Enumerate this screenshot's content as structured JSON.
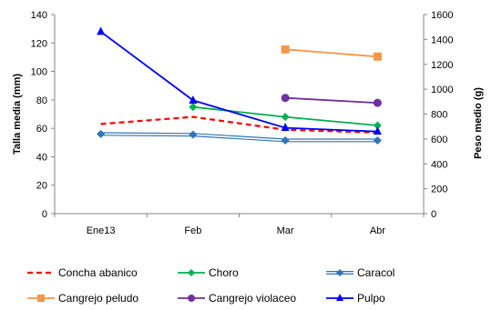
{
  "chart_data": {
    "type": "line",
    "categories": [
      "Ene13",
      "Feb",
      "Mar",
      "Abr"
    ],
    "ylabel": "Talla media (mm)",
    "y2label": "Peso medio (g)",
    "ylim": [
      0,
      140
    ],
    "y2lim": [
      0,
      1600
    ],
    "yticks": [
      "0",
      "20",
      "40",
      "60",
      "80",
      "100",
      "120",
      "140"
    ],
    "y2ticks": [
      "0",
      "200",
      "400",
      "600",
      "800",
      "1000",
      "1200",
      "1400",
      "1600"
    ],
    "legend_position": "bottom",
    "series": [
      {
        "name": "Concha abanico",
        "axis": "left",
        "color": "#ff0000",
        "dash": true,
        "marker": "none",
        "values": [
          63,
          68,
          59,
          57
        ]
      },
      {
        "name": "Choro",
        "axis": "left",
        "color": "#00b050",
        "dash": false,
        "marker": "diamond",
        "values": [
          null,
          75,
          68,
          62
        ]
      },
      {
        "name": "Caracol",
        "axis": "left",
        "color": "#2e75b6",
        "dash": false,
        "double": true,
        "marker": "diamond",
        "values": [
          56,
          55.5,
          51.5,
          51.5
        ]
      },
      {
        "name": "Cangrejo peludo",
        "axis": "right",
        "color": "#f79646",
        "dash": false,
        "marker": "square",
        "values": [
          null,
          null,
          1320,
          1262
        ]
      },
      {
        "name": "Cangrejo violaceo",
        "axis": "right",
        "color": "#7030a0",
        "dash": false,
        "marker": "circle",
        "values": [
          null,
          null,
          930,
          890
        ]
      },
      {
        "name": "Pulpo",
        "axis": "right",
        "color": "#0000ff",
        "dash": false,
        "marker": "triangle",
        "values": [
          1462,
          910,
          690,
          660
        ]
      }
    ]
  }
}
